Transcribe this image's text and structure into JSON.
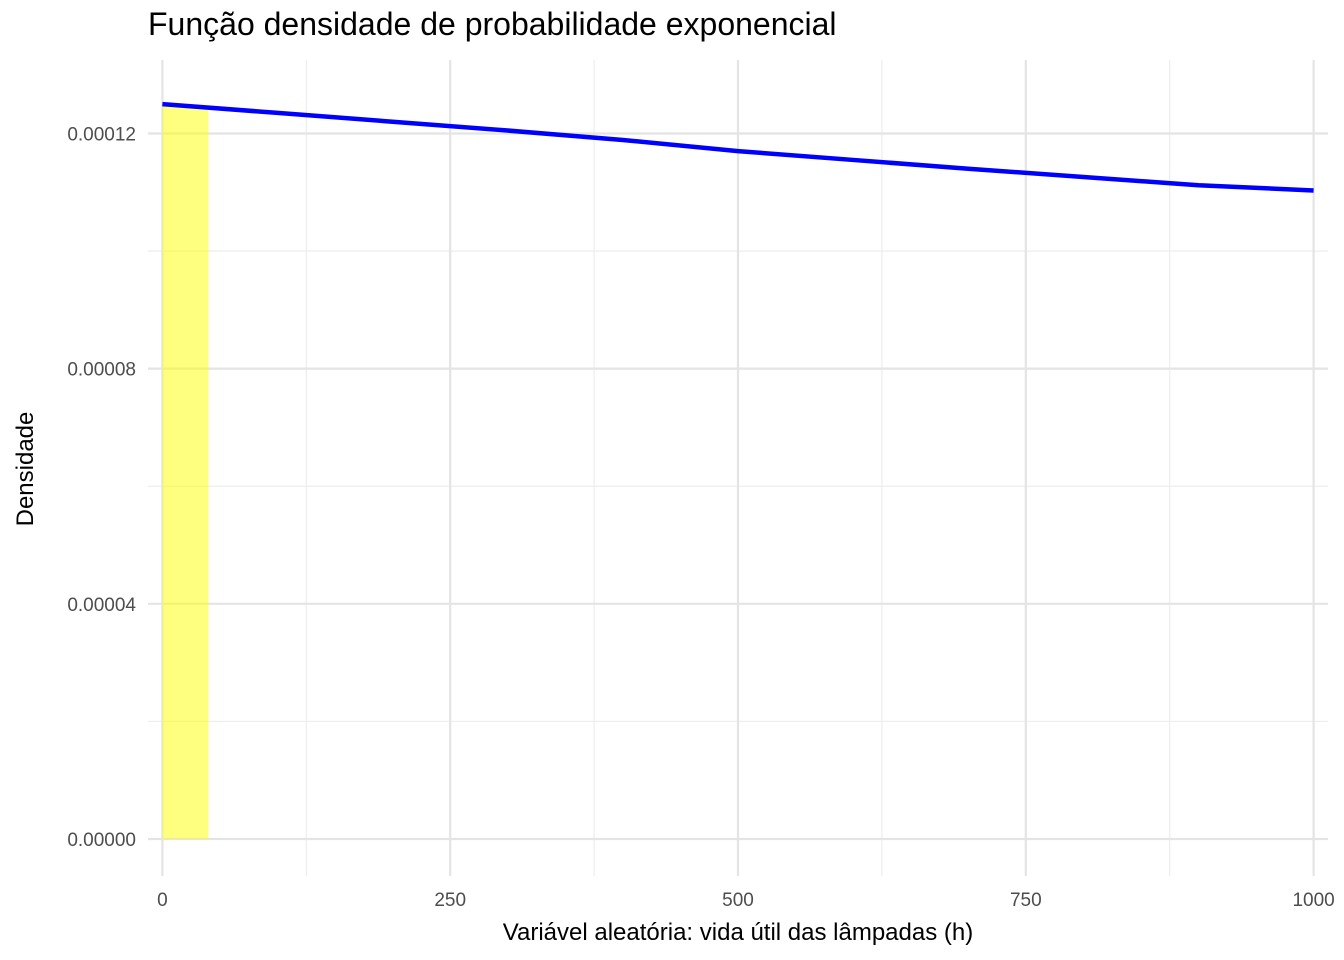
{
  "chart_data": {
    "type": "area",
    "title": "Função densidade de probabilidade exponencial",
    "xlabel": "Variável aleatória: vida útil das lâmpadas (h)",
    "ylabel": "Densidade",
    "xlim": [
      -12.5,
      1012.5
    ],
    "ylim": [
      -6.3e-06,
      0.0001325
    ],
    "x_ticks": [
      0,
      250,
      500,
      750,
      1000
    ],
    "x_tick_labels": [
      "0",
      "250",
      "500",
      "750",
      "1000"
    ],
    "y_ticks": [
      0,
      4e-05,
      8e-05,
      0.00012
    ],
    "y_tick_labels": [
      "0.00000",
      "0.00004",
      "0.00008",
      "0.00012"
    ],
    "grid": true,
    "series": [
      {
        "kind": "line",
        "color": "#0000FF",
        "rate": 0.000125,
        "x": [
          0,
          100,
          200,
          300,
          400,
          500,
          600,
          700,
          800,
          900,
          1000
        ],
        "y": [
          0.000125,
          0.0001235,
          0.000122,
          0.0001205,
          0.0001189,
          0.000117,
          0.0001155,
          0.000114,
          0.0001126,
          0.0001112,
          0.0001103
        ]
      },
      {
        "kind": "shaded_area",
        "color": "#FFFF00",
        "opacity": 0.5,
        "x_range": [
          0,
          40
        ]
      }
    ]
  }
}
